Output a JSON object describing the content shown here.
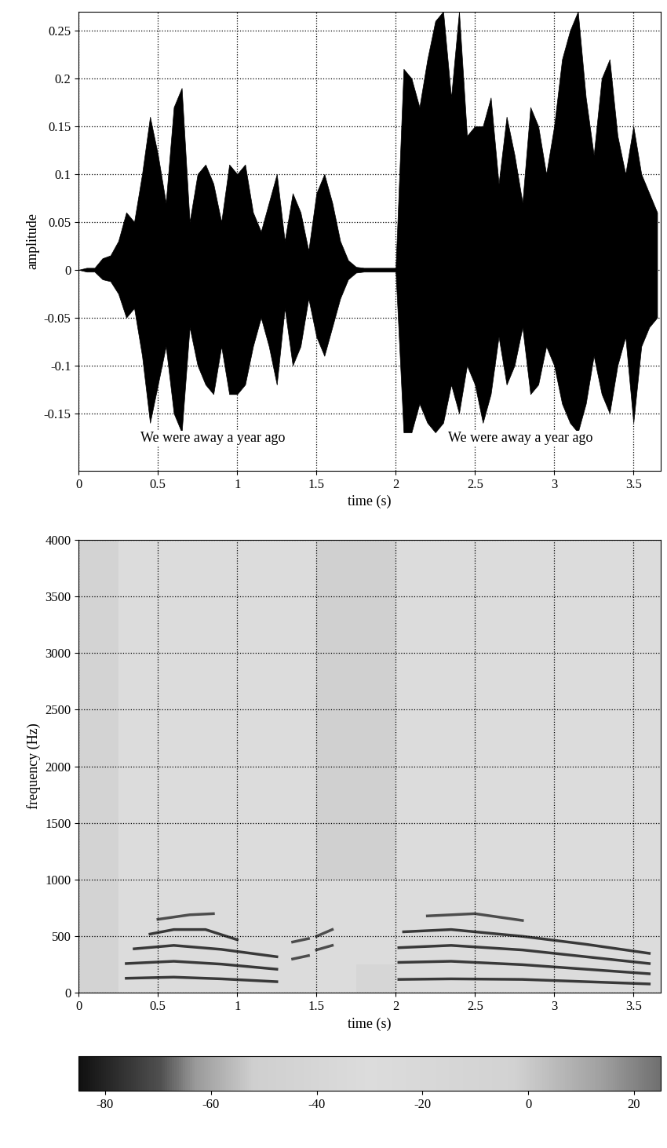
{
  "chart_data": [
    {
      "type": "waveform",
      "xlabel": "time (s)",
      "ylabel": "amplitude",
      "color": "#000000",
      "annotations": [
        "We were away a year ago",
        "We were away a year ago"
      ],
      "x": [
        0,
        0.05,
        0.1,
        0.15,
        0.2,
        0.25,
        0.3,
        0.35,
        0.4,
        0.45,
        0.5,
        0.55,
        0.6,
        0.65,
        0.7,
        0.75,
        0.8,
        0.85,
        0.9,
        0.95,
        1.0,
        1.05,
        1.1,
        1.15,
        1.2,
        1.25,
        1.3,
        1.35,
        1.4,
        1.45,
        1.5,
        1.55,
        1.6,
        1.65,
        1.7,
        1.75,
        1.8,
        1.85,
        1.9,
        1.95,
        2.0,
        2.05,
        2.1,
        2.15,
        2.2,
        2.25,
        2.3,
        2.35,
        2.4,
        2.45,
        2.5,
        2.55,
        2.6,
        2.65,
        2.7,
        2.75,
        2.8,
        2.85,
        2.9,
        2.95,
        3.0,
        3.05,
        3.1,
        3.15,
        3.2,
        3.25,
        3.3,
        3.35,
        3.4,
        3.45,
        3.5,
        3.55,
        3.6,
        3.65
      ],
      "upper": [
        0,
        0.002,
        0.002,
        0.012,
        0.015,
        0.03,
        0.06,
        0.05,
        0.1,
        0.16,
        0.12,
        0.07,
        0.17,
        0.19,
        0.05,
        0.1,
        0.11,
        0.09,
        0.05,
        0.11,
        0.1,
        0.11,
        0.06,
        0.04,
        0.07,
        0.1,
        0.03,
        0.08,
        0.06,
        0.02,
        0.08,
        0.1,
        0.07,
        0.03,
        0.01,
        0.003,
        0.002,
        0.002,
        0.002,
        0.002,
        0.002,
        0.21,
        0.2,
        0.17,
        0.22,
        0.26,
        0.27,
        0.18,
        0.27,
        0.14,
        0.15,
        0.15,
        0.18,
        0.09,
        0.16,
        0.12,
        0.07,
        0.17,
        0.15,
        0.1,
        0.15,
        0.22,
        0.25,
        0.27,
        0.18,
        0.12,
        0.2,
        0.22,
        0.14,
        0.1,
        0.15,
        0.1,
        0.08,
        0.06
      ],
      "lower": [
        0,
        -0.002,
        -0.002,
        -0.01,
        -0.012,
        -0.025,
        -0.05,
        -0.04,
        -0.09,
        -0.16,
        -0.12,
        -0.08,
        -0.15,
        -0.17,
        -0.06,
        -0.1,
        -0.12,
        -0.13,
        -0.08,
        -0.13,
        -0.13,
        -0.12,
        -0.08,
        -0.05,
        -0.08,
        -0.12,
        -0.04,
        -0.1,
        -0.08,
        -0.03,
        -0.07,
        -0.09,
        -0.06,
        -0.03,
        -0.01,
        -0.003,
        -0.002,
        -0.002,
        -0.002,
        -0.002,
        -0.002,
        -0.17,
        -0.17,
        -0.14,
        -0.16,
        -0.17,
        -0.16,
        -0.12,
        -0.15,
        -0.1,
        -0.12,
        -0.16,
        -0.13,
        -0.07,
        -0.12,
        -0.1,
        -0.06,
        -0.13,
        -0.12,
        -0.08,
        -0.1,
        -0.14,
        -0.16,
        -0.17,
        -0.14,
        -0.09,
        -0.13,
        -0.15,
        -0.1,
        -0.07,
        -0.16,
        -0.08,
        -0.06,
        -0.05
      ],
      "xlim": [
        0,
        3.67
      ],
      "ylim": [
        -0.21,
        0.27
      ],
      "xticks": [
        0,
        0.5,
        1,
        1.5,
        2,
        2.5,
        3,
        3.5
      ],
      "yticks": [
        -0.15,
        -0.1,
        -0.05,
        0,
        0.05,
        0.1,
        0.15,
        0.2,
        0.25
      ],
      "grid": true
    },
    {
      "type": "spectrogram",
      "xlabel": "time (s)",
      "ylabel": "frequency (Hz)",
      "time_edges": [
        0,
        0.25,
        0.5,
        0.75,
        1.0,
        1.25,
        1.5,
        1.75,
        2.0,
        2.25,
        2.5,
        2.75,
        3.0,
        3.25,
        3.5,
        3.75
      ],
      "freq_edges": [
        0,
        250,
        500,
        1000,
        1500,
        2000,
        2500,
        3000,
        3500,
        4000
      ],
      "cells": [
        [
          -45,
          -30,
          -30,
          -30,
          -30,
          -30,
          -30,
          -40,
          -30,
          -30,
          -30,
          -30,
          -30,
          -30,
          -30
        ],
        [
          -45,
          -30,
          -30,
          -30,
          -30,
          -30,
          -30,
          -30,
          -30,
          -30,
          -30,
          -30,
          -30,
          -30,
          -30
        ],
        [
          -45,
          -30,
          -30,
          -30,
          -30,
          -30,
          -30,
          -30,
          -30,
          -30,
          -30,
          -30,
          -30,
          -30,
          -30
        ],
        [
          -45,
          -30,
          -30,
          -30,
          -30,
          -30,
          -50,
          -50,
          -30,
          -30,
          -30,
          -30,
          -30,
          -30,
          -30
        ],
        [
          -45,
          -30,
          -30,
          -30,
          -30,
          -30,
          -50,
          -50,
          -30,
          -30,
          -30,
          -30,
          -30,
          -30,
          -30
        ],
        [
          -45,
          -30,
          -30,
          -30,
          -30,
          -30,
          -50,
          -50,
          -30,
          -30,
          -30,
          -30,
          -30,
          -30,
          -30
        ],
        [
          -45,
          -30,
          -30,
          -30,
          -30,
          -30,
          -50,
          -50,
          -30,
          -30,
          -30,
          -30,
          -30,
          -30,
          -30
        ],
        [
          -45,
          -30,
          -30,
          -30,
          -30,
          -30,
          -50,
          -50,
          -30,
          -30,
          -30,
          -30,
          -30,
          -30,
          -30
        ],
        [
          -45,
          -30,
          -30,
          -30,
          -30,
          -30,
          -50,
          -50,
          -30,
          -30,
          -30,
          -30,
          -30,
          -30,
          -30
        ]
      ],
      "tracks": [
        {
          "x": [
            0.3,
            0.6,
            0.9,
            1.25
          ],
          "y": [
            130,
            140,
            125,
            100
          ],
          "level": -75
        },
        {
          "x": [
            0.3,
            0.6,
            0.9,
            1.25
          ],
          "y": [
            260,
            280,
            255,
            210
          ],
          "level": -75
        },
        {
          "x": [
            0.35,
            0.6,
            0.9,
            1.25
          ],
          "y": [
            390,
            420,
            385,
            320
          ],
          "level": -75
        },
        {
          "x": [
            0.45,
            0.6,
            0.8,
            1.0
          ],
          "y": [
            520,
            560,
            560,
            470
          ],
          "level": -75
        },
        {
          "x": [
            0.5,
            0.7,
            0.85
          ],
          "y": [
            650,
            690,
            700
          ],
          "level": -70
        },
        {
          "x": [
            1.35,
            1.45
          ],
          "y": [
            300,
            330
          ],
          "level": -70
        },
        {
          "x": [
            1.35,
            1.45
          ],
          "y": [
            450,
            480
          ],
          "level": -70
        },
        {
          "x": [
            1.5,
            1.6
          ],
          "y": [
            380,
            420
          ],
          "level": -70
        },
        {
          "x": [
            1.5,
            1.6
          ],
          "y": [
            500,
            560
          ],
          "level": -70
        },
        {
          "x": [
            2.02,
            2.35,
            2.8,
            3.2,
            3.6
          ],
          "y": [
            120,
            125,
            120,
            100,
            80
          ],
          "level": -75
        },
        {
          "x": [
            2.02,
            2.35,
            2.8,
            3.2,
            3.6
          ],
          "y": [
            270,
            280,
            250,
            210,
            170
          ],
          "level": -75
        },
        {
          "x": [
            2.02,
            2.35,
            2.8,
            3.2,
            3.6
          ],
          "y": [
            400,
            420,
            380,
            320,
            260
          ],
          "level": -75
        },
        {
          "x": [
            2.05,
            2.35,
            2.8,
            3.2,
            3.6
          ],
          "y": [
            540,
            560,
            500,
            430,
            350
          ],
          "level": -75
        },
        {
          "x": [
            2.2,
            2.5,
            2.8
          ],
          "y": [
            680,
            700,
            640
          ],
          "level": -70
        }
      ],
      "xlim": [
        0,
        3.67
      ],
      "ylim": [
        0,
        4000
      ],
      "xticks": [
        0,
        0.5,
        1,
        1.5,
        2,
        2.5,
        3,
        3.5
      ],
      "yticks": [
        0,
        500,
        1000,
        1500,
        2000,
        2500,
        3000,
        3500,
        4000
      ],
      "grid": true,
      "colorbar": {
        "range": [
          -85,
          25
        ],
        "ticks": [
          -80,
          -60,
          -40,
          -20,
          0,
          20
        ]
      }
    }
  ]
}
